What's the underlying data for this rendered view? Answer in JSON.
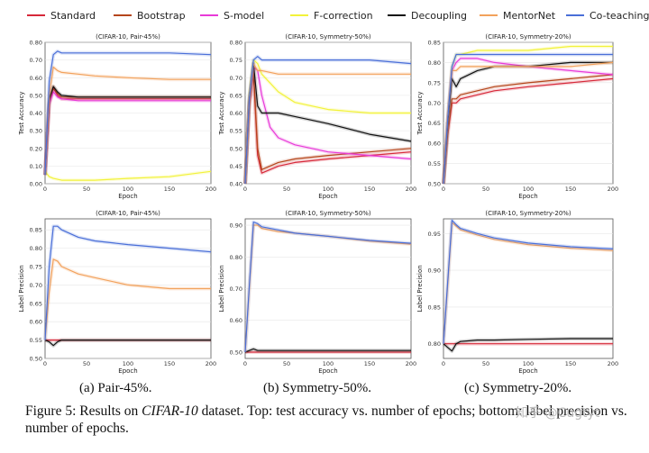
{
  "legend": {
    "entries": [
      {
        "name": "Standard",
        "color": "#d62839"
      },
      {
        "name": "Bootstrap",
        "color": "#b5451b"
      },
      {
        "name": "S-model",
        "color": "#e83ad8"
      },
      {
        "name": "F-correction",
        "color": "#f2f23a"
      },
      {
        "name": "Decoupling",
        "color": "#111111"
      },
      {
        "name": "MentorNet",
        "color": "#f2a25c"
      },
      {
        "name": "Co-teaching",
        "color": "#4a6fd8"
      }
    ]
  },
  "chart_data": [
    {
      "type": "line",
      "title": "(CIFAR-10, Pair-45%)",
      "xlabel": "Epoch",
      "ylabel": "Test Accuracy",
      "xlim": [
        0,
        200
      ],
      "ylim": [
        0.0,
        0.8
      ],
      "xticks": [
        "0",
        "50",
        "100",
        "150",
        "200"
      ],
      "yticks": [
        "0.00",
        "0.10",
        "0.20",
        "0.30",
        "0.40",
        "0.50",
        "0.60",
        "0.70",
        "0.80"
      ],
      "series": [
        {
          "name": "Standard",
          "x": [
            0,
            5,
            10,
            15,
            20,
            40,
            60,
            100,
            150,
            200
          ],
          "y": [
            0.05,
            0.45,
            0.54,
            0.5,
            0.48,
            0.48,
            0.48,
            0.48,
            0.48,
            0.48
          ]
        },
        {
          "name": "Bootstrap",
          "x": [
            0,
            5,
            10,
            15,
            20,
            40,
            60,
            100,
            150,
            200
          ],
          "y": [
            0.05,
            0.46,
            0.55,
            0.51,
            0.49,
            0.49,
            0.49,
            0.49,
            0.49,
            0.49
          ]
        },
        {
          "name": "S-model",
          "x": [
            0,
            5,
            10,
            15,
            20,
            40,
            60,
            100,
            150,
            200
          ],
          "y": [
            0.05,
            0.45,
            0.52,
            0.49,
            0.48,
            0.47,
            0.47,
            0.47,
            0.47,
            0.47
          ]
        },
        {
          "name": "F-correction",
          "x": [
            0,
            5,
            10,
            20,
            40,
            60,
            100,
            150,
            200
          ],
          "y": [
            0.07,
            0.04,
            0.03,
            0.02,
            0.02,
            0.02,
            0.03,
            0.04,
            0.07
          ]
        },
        {
          "name": "Decoupling",
          "x": [
            0,
            5,
            10,
            15,
            20,
            40,
            60,
            100,
            150,
            200
          ],
          "y": [
            0.05,
            0.48,
            0.55,
            0.52,
            0.5,
            0.49,
            0.49,
            0.49,
            0.49,
            0.49
          ]
        },
        {
          "name": "MentorNet",
          "x": [
            0,
            5,
            10,
            15,
            20,
            40,
            60,
            100,
            150,
            200
          ],
          "y": [
            0.05,
            0.5,
            0.66,
            0.64,
            0.63,
            0.62,
            0.61,
            0.6,
            0.59,
            0.59
          ]
        },
        {
          "name": "Co-teaching",
          "x": [
            0,
            5,
            10,
            15,
            20,
            40,
            60,
            100,
            150,
            200
          ],
          "y": [
            0.05,
            0.58,
            0.73,
            0.75,
            0.74,
            0.74,
            0.74,
            0.74,
            0.74,
            0.73
          ]
        }
      ]
    },
    {
      "type": "line",
      "title": "(CIFAR-10, Symmetry-50%)",
      "xlabel": "Epoch",
      "ylabel": "Test Accuracy",
      "xlim": [
        0,
        200
      ],
      "ylim": [
        0.4,
        0.8
      ],
      "xticks": [
        "0",
        "50",
        "100",
        "150",
        "200"
      ],
      "yticks": [
        "0.40",
        "0.45",
        "0.50",
        "0.55",
        "0.60",
        "0.65",
        "0.70",
        "0.75",
        "0.80"
      ],
      "series": [
        {
          "name": "Standard",
          "x": [
            0,
            5,
            10,
            15,
            20,
            40,
            60,
            100,
            150,
            200
          ],
          "y": [
            0.4,
            0.62,
            0.71,
            0.48,
            0.43,
            0.45,
            0.46,
            0.47,
            0.48,
            0.49
          ]
        },
        {
          "name": "Bootstrap",
          "x": [
            0,
            5,
            10,
            15,
            20,
            40,
            60,
            100,
            150,
            200
          ],
          "y": [
            0.4,
            0.63,
            0.72,
            0.5,
            0.44,
            0.46,
            0.47,
            0.48,
            0.49,
            0.5
          ]
        },
        {
          "name": "S-model",
          "x": [
            0,
            5,
            10,
            15,
            20,
            30,
            40,
            60,
            100,
            150,
            200
          ],
          "y": [
            0.4,
            0.63,
            0.73,
            0.72,
            0.65,
            0.56,
            0.53,
            0.51,
            0.49,
            0.48,
            0.47
          ]
        },
        {
          "name": "F-correction",
          "x": [
            0,
            5,
            10,
            15,
            20,
            40,
            60,
            100,
            150,
            200
          ],
          "y": [
            0.4,
            0.65,
            0.75,
            0.74,
            0.71,
            0.66,
            0.63,
            0.61,
            0.6,
            0.6
          ]
        },
        {
          "name": "Decoupling",
          "x": [
            0,
            5,
            10,
            15,
            20,
            40,
            60,
            100,
            150,
            200
          ],
          "y": [
            0.4,
            0.64,
            0.74,
            0.62,
            0.6,
            0.6,
            0.59,
            0.57,
            0.54,
            0.52
          ]
        },
        {
          "name": "MentorNet",
          "x": [
            0,
            5,
            10,
            15,
            20,
            40,
            60,
            100,
            150,
            200
          ],
          "y": [
            0.4,
            0.63,
            0.74,
            0.72,
            0.72,
            0.71,
            0.71,
            0.71,
            0.71,
            0.71
          ]
        },
        {
          "name": "Co-teaching",
          "x": [
            0,
            5,
            10,
            15,
            20,
            40,
            60,
            100,
            150,
            200
          ],
          "y": [
            0.4,
            0.64,
            0.75,
            0.76,
            0.75,
            0.75,
            0.75,
            0.75,
            0.75,
            0.74
          ]
        }
      ]
    },
    {
      "type": "line",
      "title": "(CIFAR-10, Symmetry-20%)",
      "xlabel": "Epoch",
      "ylabel": "Test Accuracy",
      "xlim": [
        0,
        200
      ],
      "ylim": [
        0.5,
        0.85
      ],
      "xticks": [
        "0",
        "50",
        "100",
        "150",
        "200"
      ],
      "yticks": [
        "0.50",
        "0.55",
        "0.60",
        "0.65",
        "0.70",
        "0.75",
        "0.80",
        "0.85"
      ],
      "series": [
        {
          "name": "Standard",
          "x": [
            0,
            5,
            10,
            15,
            20,
            40,
            60,
            100,
            150,
            200
          ],
          "y": [
            0.5,
            0.62,
            0.7,
            0.7,
            0.71,
            0.72,
            0.73,
            0.74,
            0.75,
            0.76
          ]
        },
        {
          "name": "Bootstrap",
          "x": [
            0,
            5,
            10,
            15,
            20,
            40,
            60,
            100,
            150,
            200
          ],
          "y": [
            0.5,
            0.63,
            0.71,
            0.71,
            0.72,
            0.73,
            0.74,
            0.75,
            0.76,
            0.77
          ]
        },
        {
          "name": "S-model",
          "x": [
            0,
            5,
            10,
            15,
            20,
            40,
            60,
            100,
            150,
            200
          ],
          "y": [
            0.5,
            0.66,
            0.78,
            0.8,
            0.81,
            0.81,
            0.8,
            0.79,
            0.78,
            0.77
          ]
        },
        {
          "name": "F-correction",
          "x": [
            0,
            5,
            10,
            15,
            20,
            40,
            60,
            100,
            150,
            200
          ],
          "y": [
            0.5,
            0.66,
            0.79,
            0.82,
            0.82,
            0.83,
            0.83,
            0.83,
            0.84,
            0.84
          ]
        },
        {
          "name": "Decoupling",
          "x": [
            0,
            5,
            10,
            15,
            20,
            40,
            60,
            100,
            150,
            200
          ],
          "y": [
            0.5,
            0.65,
            0.76,
            0.74,
            0.76,
            0.78,
            0.79,
            0.79,
            0.8,
            0.8
          ]
        },
        {
          "name": "MentorNet",
          "x": [
            0,
            5,
            10,
            15,
            20,
            40,
            60,
            100,
            150,
            200
          ],
          "y": [
            0.5,
            0.66,
            0.78,
            0.78,
            0.79,
            0.79,
            0.79,
            0.79,
            0.79,
            0.8
          ]
        },
        {
          "name": "Co-teaching",
          "x": [
            0,
            5,
            10,
            15,
            20,
            40,
            60,
            100,
            150,
            200
          ],
          "y": [
            0.5,
            0.66,
            0.79,
            0.82,
            0.82,
            0.82,
            0.82,
            0.82,
            0.82,
            0.82
          ]
        }
      ]
    },
    {
      "type": "line",
      "title": "(CIFAR-10, Pair-45%)",
      "xlabel": "Epoch",
      "ylabel": "Label Precision",
      "xlim": [
        0,
        200
      ],
      "ylim": [
        0.5,
        0.88
      ],
      "xticks": [
        "0",
        "50",
        "100",
        "150",
        "200"
      ],
      "yticks": [
        "0.50",
        "0.55",
        "0.60",
        "0.65",
        "0.70",
        "0.75",
        "0.80",
        "0.85"
      ],
      "series": [
        {
          "name": "Standard",
          "x": [
            0,
            5,
            10,
            15,
            20,
            40,
            60,
            100,
            150,
            200
          ],
          "y": [
            0.55,
            0.55,
            0.55,
            0.55,
            0.55,
            0.55,
            0.55,
            0.55,
            0.55,
            0.55
          ]
        },
        {
          "name": "Decoupling",
          "x": [
            0,
            5,
            10,
            15,
            20,
            40,
            60,
            100,
            150,
            200
          ],
          "y": [
            0.55,
            0.545,
            0.535,
            0.545,
            0.55,
            0.55,
            0.55,
            0.55,
            0.55,
            0.55
          ]
        },
        {
          "name": "MentorNet",
          "x": [
            0,
            5,
            10,
            15,
            20,
            40,
            60,
            100,
            150,
            200
          ],
          "y": [
            0.55,
            0.68,
            0.77,
            0.765,
            0.75,
            0.73,
            0.72,
            0.7,
            0.69,
            0.69
          ]
        },
        {
          "name": "Co-teaching",
          "x": [
            0,
            5,
            10,
            15,
            20,
            40,
            60,
            100,
            150,
            200
          ],
          "y": [
            0.55,
            0.75,
            0.86,
            0.86,
            0.85,
            0.83,
            0.82,
            0.81,
            0.8,
            0.79
          ]
        }
      ]
    },
    {
      "type": "line",
      "title": "(CIFAR-10, Symmetry-50%)",
      "xlabel": "Epoch",
      "ylabel": "Label Precision",
      "xlim": [
        0,
        200
      ],
      "ylim": [
        0.48,
        0.92
      ],
      "xticks": [
        "0",
        "50",
        "100",
        "150",
        "200"
      ],
      "yticks": [
        "0.50",
        "0.60",
        "0.70",
        "0.80",
        "0.90"
      ],
      "series": [
        {
          "name": "Standard",
          "x": [
            0,
            5,
            10,
            15,
            20,
            40,
            60,
            100,
            150,
            200
          ],
          "y": [
            0.5,
            0.5,
            0.5,
            0.5,
            0.5,
            0.5,
            0.5,
            0.5,
            0.5,
            0.5
          ]
        },
        {
          "name": "Decoupling",
          "x": [
            0,
            5,
            10,
            15,
            20,
            40,
            60,
            100,
            150,
            200
          ],
          "y": [
            0.5,
            0.505,
            0.51,
            0.505,
            0.505,
            0.505,
            0.505,
            0.505,
            0.505,
            0.505
          ]
        },
        {
          "name": "MentorNet",
          "x": [
            0,
            5,
            10,
            15,
            20,
            40,
            60,
            100,
            150,
            200
          ],
          "y": [
            0.5,
            0.7,
            0.9,
            0.9,
            0.89,
            0.88,
            0.875,
            0.865,
            0.85,
            0.84
          ]
        },
        {
          "name": "Co-teaching",
          "x": [
            0,
            5,
            10,
            15,
            20,
            40,
            60,
            100,
            150,
            200
          ],
          "y": [
            0.5,
            0.71,
            0.91,
            0.905,
            0.895,
            0.885,
            0.875,
            0.865,
            0.852,
            0.843
          ]
        }
      ]
    },
    {
      "type": "line",
      "title": "(CIFAR-10, Symmetry-20%)",
      "xlabel": "Epoch",
      "ylabel": "Label Precision",
      "xlim": [
        0,
        200
      ],
      "ylim": [
        0.78,
        0.97
      ],
      "xticks": [
        "0",
        "50",
        "100",
        "150",
        "200"
      ],
      "yticks": [
        "0.80",
        "0.85",
        "0.90",
        "0.95"
      ],
      "series": [
        {
          "name": "Standard",
          "x": [
            0,
            5,
            10,
            15,
            20,
            40,
            60,
            100,
            150,
            200
          ],
          "y": [
            0.8,
            0.8,
            0.8,
            0.8,
            0.8,
            0.8,
            0.8,
            0.8,
            0.8,
            0.8
          ]
        },
        {
          "name": "Decoupling",
          "x": [
            0,
            5,
            10,
            15,
            20,
            40,
            60,
            100,
            150,
            200
          ],
          "y": [
            0.8,
            0.795,
            0.79,
            0.8,
            0.803,
            0.805,
            0.805,
            0.806,
            0.807,
            0.807
          ]
        },
        {
          "name": "MentorNet",
          "x": [
            0,
            5,
            10,
            15,
            20,
            40,
            60,
            100,
            150,
            200
          ],
          "y": [
            0.8,
            0.88,
            0.965,
            0.96,
            0.955,
            0.948,
            0.942,
            0.935,
            0.93,
            0.927
          ]
        },
        {
          "name": "Co-teaching",
          "x": [
            0,
            5,
            10,
            15,
            20,
            40,
            60,
            100,
            150,
            200
          ],
          "y": [
            0.8,
            0.885,
            0.968,
            0.962,
            0.957,
            0.95,
            0.944,
            0.937,
            0.932,
            0.929
          ]
        }
      ]
    }
  ],
  "subplot_labels": [
    "(a) Pair-45%.",
    "(b) Symmetry-50%.",
    "(c) Symmetry-20%."
  ],
  "caption": {
    "prefix": "Figure 5: Results on ",
    "dataset": "CIFAR-10",
    "suffix": " dataset. Top: test accuracy vs. number of epochs; bottom: label precision vs. number of epochs."
  },
  "watermark": "知乎 @Cugtyt"
}
